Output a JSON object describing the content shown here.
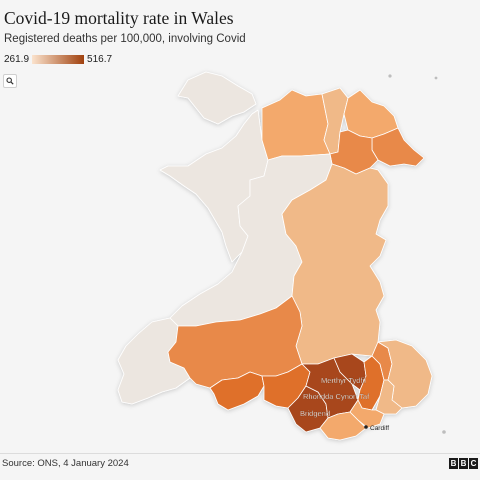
{
  "header": {
    "title": "Covid-19 mortality rate in Wales",
    "subtitle": "Registered deaths per 100,000, involving Covid"
  },
  "legend": {
    "min_label": "261.9",
    "max_label": "516.7",
    "min_color": "#fbe3cd",
    "max_color": "#a0410e"
  },
  "controls": {
    "zoom_icon": "search-icon"
  },
  "labels": {
    "merthyr": "Merthyr Tydfil",
    "rhondda": "Rhondda Cynon Taf",
    "bridgend": "Bridgend",
    "cardiff": "Cardiff"
  },
  "footer": {
    "source": "Source: ONS, 4 January 2024",
    "logo": [
      "B",
      "B",
      "C"
    ]
  },
  "colors": {
    "lightest": "#ece6e0",
    "light": "#f0b988",
    "medium": "#f3a96c",
    "orange": "#e8894a",
    "dark_orange": "#df6f2b",
    "darkest": "#a8471a"
  }
}
